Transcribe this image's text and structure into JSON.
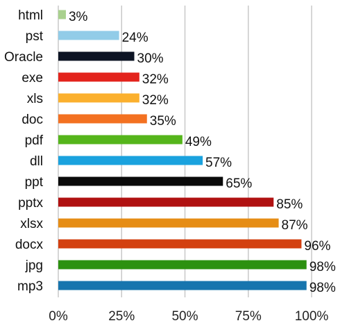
{
  "chart_data": {
    "type": "bar",
    "orientation": "horizontal",
    "title": "",
    "xlabel": "",
    "ylabel": "",
    "xlim": [
      0,
      100
    ],
    "x_ticks": [
      0,
      25,
      50,
      75,
      100
    ],
    "x_tick_labels": [
      "0%",
      "25%",
      "50%",
      "75%",
      "100%"
    ],
    "grid": "vertical",
    "legend": "none",
    "categories": [
      "html",
      "pst",
      "Oracle",
      "exe",
      "xls",
      "doc",
      "pdf",
      "dll",
      "ppt",
      "pptx",
      "xlsx",
      "docx",
      "jpg",
      "mp3"
    ],
    "values": [
      3,
      24,
      30,
      32,
      32,
      35,
      49,
      57,
      65,
      85,
      87,
      96,
      98,
      98
    ],
    "value_labels": [
      "3%",
      "24%",
      "30%",
      "32%",
      "32%",
      "35%",
      "49%",
      "57%",
      "65%",
      "85%",
      "87%",
      "96%",
      "98%",
      "98%"
    ],
    "colors": [
      "#a9d18e",
      "#92cce8",
      "#0d1424",
      "#e3231c",
      "#fbb02e",
      "#f37121",
      "#55b51b",
      "#1aa2de",
      "#0a0a0a",
      "#b01111",
      "#e68d15",
      "#d34010",
      "#2c9110",
      "#1775ae"
    ]
  }
}
